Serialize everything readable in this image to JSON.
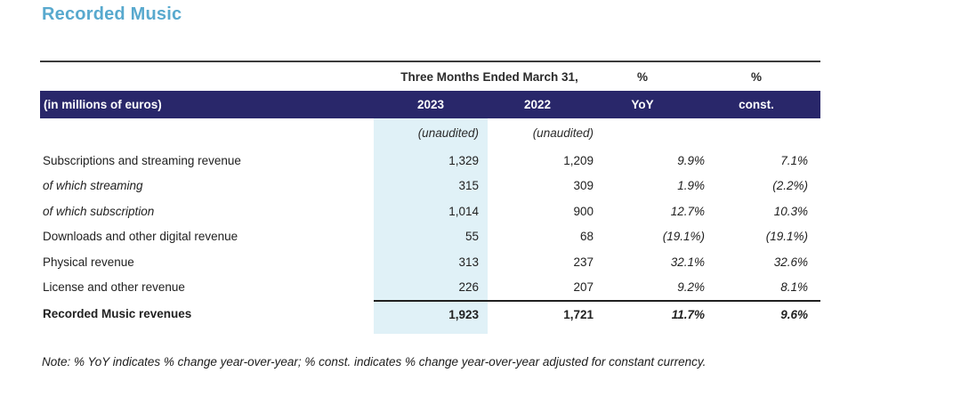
{
  "title": "Recorded Music",
  "colors": {
    "title_accent": "#58A9CE",
    "header_bg": "#29276A",
    "highlight_column_bg": "#E0F1F7",
    "rule": "#3b3b3b"
  },
  "table": {
    "group_header": "Three Months Ended March 31,",
    "pct_header_yoy": "%",
    "pct_header_const": "%",
    "header": {
      "label": "(in millions of euros)",
      "col_2023": "2023",
      "col_2022": "2022",
      "col_yoy": "YoY",
      "col_const": "const."
    },
    "subheader": {
      "unaudited_2023": "(unaudited)",
      "unaudited_2022": "(unaudited)"
    },
    "rows": [
      {
        "label": "Subscriptions and streaming revenue",
        "v2023": "1,329",
        "v2022": "1,209",
        "yoy": "9.9%",
        "const": "7.1%"
      },
      {
        "label": "of which streaming",
        "v2023": "315",
        "v2022": "309",
        "yoy": "1.9%",
        "const": "(2.2%)"
      },
      {
        "label": "of which subscription",
        "v2023": "1,014",
        "v2022": "900",
        "yoy": "12.7%",
        "const": "10.3%"
      },
      {
        "label": "Downloads and other digital revenue",
        "v2023": "55",
        "v2022": "68",
        "yoy": "(19.1%)",
        "const": "(19.1%)"
      },
      {
        "label": "Physical revenue",
        "v2023": "313",
        "v2022": "237",
        "yoy": "32.1%",
        "const": "32.6%"
      },
      {
        "label": "License and other revenue",
        "v2023": "226",
        "v2022": "207",
        "yoy": "9.2%",
        "const": "8.1%"
      }
    ],
    "total": {
      "label": "Recorded Music revenues",
      "v2023": "1,923",
      "v2022": "1,721",
      "yoy": "11.7%",
      "const": "9.6%"
    }
  },
  "note": "Note: % YoY indicates % change year-over-year; % const. indicates % change year-over-year adjusted for constant currency."
}
